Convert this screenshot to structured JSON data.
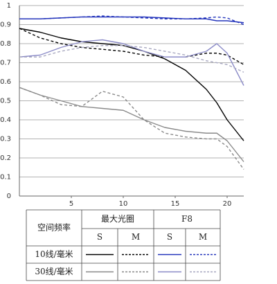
{
  "chart_data": {
    "type": "line",
    "x": [
      0,
      2,
      4,
      6,
      8,
      10,
      12,
      14,
      16,
      18,
      19,
      20,
      21.6
    ],
    "xlim": [
      0,
      21.6
    ],
    "xticks": [
      5,
      10,
      15,
      20
    ],
    "ylim": [
      0,
      1
    ],
    "yticks": [
      0,
      0.1,
      0.2,
      0.3,
      0.4,
      0.5,
      0.6,
      0.7,
      0.8,
      0.9,
      1
    ],
    "grid": true,
    "series": [
      {
        "color": "#000000",
        "dash": false,
        "values": [
          0.88,
          0.86,
          0.83,
          0.81,
          0.8,
          0.79,
          0.76,
          0.72,
          0.66,
          0.56,
          0.49,
          0.4,
          0.29
        ]
      },
      {
        "color": "#000000",
        "dash": true,
        "values": [
          0.88,
          0.83,
          0.8,
          0.78,
          0.77,
          0.76,
          0.74,
          0.73,
          0.73,
          0.75,
          0.75,
          0.74,
          0.69
        ]
      },
      {
        "color": "#2233bb",
        "dash": false,
        "values": [
          0.93,
          0.93,
          0.935,
          0.94,
          0.94,
          0.94,
          0.94,
          0.935,
          0.93,
          0.93,
          0.92,
          0.92,
          0.91
        ]
      },
      {
        "color": "#2233bb",
        "dash": true,
        "values": [
          0.93,
          0.93,
          0.935,
          0.94,
          0.945,
          0.94,
          0.935,
          0.93,
          0.93,
          0.935,
          0.94,
          0.935,
          0.9
        ]
      },
      {
        "color": "#8a8a8a",
        "dash": false,
        "values": [
          0.57,
          0.53,
          0.5,
          0.47,
          0.46,
          0.45,
          0.4,
          0.36,
          0.34,
          0.33,
          0.33,
          0.29,
          0.18
        ]
      },
      {
        "color": "#8a8a8a",
        "dash": true,
        "values": [
          0.57,
          0.53,
          0.48,
          0.47,
          0.55,
          0.52,
          0.4,
          0.33,
          0.31,
          0.3,
          0.3,
          0.26,
          0.14
        ]
      },
      {
        "color": "#8c8cc8",
        "dash": false,
        "values": [
          0.73,
          0.74,
          0.78,
          0.81,
          0.82,
          0.8,
          0.76,
          0.73,
          0.73,
          0.76,
          0.8,
          0.75,
          0.58
        ]
      },
      {
        "color": "#a8a8c0",
        "dash": true,
        "values": [
          0.73,
          0.73,
          0.76,
          0.78,
          0.79,
          0.79,
          0.78,
          0.76,
          0.74,
          0.71,
          0.7,
          0.69,
          0.65
        ]
      }
    ],
    "legend": {
      "header": "空间频率",
      "apertures": [
        "最大光圈",
        "F8"
      ],
      "types": [
        "S",
        "M",
        "S",
        "M"
      ],
      "rows": [
        "10线/毫米",
        "30线/毫米"
      ]
    }
  }
}
